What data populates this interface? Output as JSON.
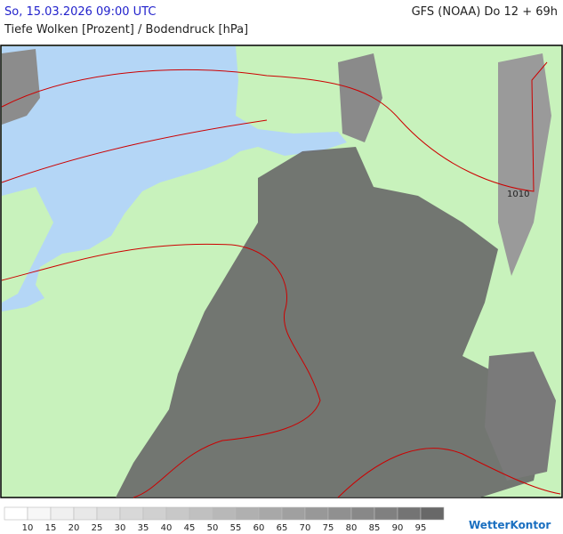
{
  "header": {
    "valid_time": "So, 15.03.2026 09:00 UTC",
    "model_run": "GFS (NOAA) Do 12 + 69h",
    "parameter": "Tiefe Wolken [Prozent] / Bodendruck [hPa]"
  },
  "isobar_label": "1010",
  "legend": {
    "labels": [
      10,
      15,
      20,
      25,
      30,
      35,
      40,
      45,
      50,
      55,
      60,
      65,
      70,
      75,
      80,
      85,
      90,
      95
    ],
    "colors": [
      "#ffffff",
      "#f7f7f7",
      "#f0f0f0",
      "#e8e8e8",
      "#e0e0e0",
      "#d8d8d8",
      "#d0d0d0",
      "#c8c8c8",
      "#c0c0c0",
      "#b8b8b8",
      "#b0b0b0",
      "#a8a8a8",
      "#a0a0a0",
      "#989898",
      "#909090",
      "#888888",
      "#808080",
      "#747474",
      "#686868"
    ]
  },
  "logo": "WetterKontor"
}
